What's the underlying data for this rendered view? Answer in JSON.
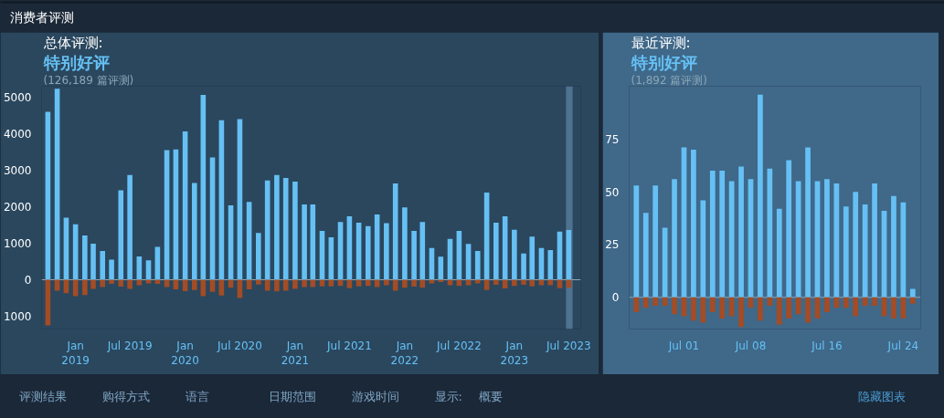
{
  "chart_data": [
    {
      "type": "other",
      "title": "消费者评测",
      "annotations": [
        "评测结果",
        "购得方式",
        "语言",
        "日期范围",
        "游戏时间",
        "显示:",
        "概要",
        "隐藏图表"
      ]
    },
    {
      "type": "bar",
      "title": "总体评测:",
      "subtitle": "特别好评",
      "annotations": [
        "(126,189 篇评测)"
      ],
      "x": [
        "2018-10",
        "2018-11",
        "2018-12",
        "2019-01",
        "2019-02",
        "2019-03",
        "2019-04",
        "2019-05",
        "2019-06",
        "2019-07",
        "2019-08",
        "2019-09",
        "2019-10",
        "2019-11",
        "2019-12",
        "2020-01",
        "2020-02",
        "2020-03",
        "2020-04",
        "2020-05",
        "2020-06",
        "2020-07",
        "2020-08",
        "2020-09",
        "2020-10",
        "2020-11",
        "2020-12",
        "2021-01",
        "2021-02",
        "2021-03",
        "2021-04",
        "2021-05",
        "2021-06",
        "2021-07",
        "2021-08",
        "2021-09",
        "2021-10",
        "2021-11",
        "2021-12",
        "2022-01",
        "2022-02",
        "2022-03",
        "2022-04",
        "2022-05",
        "2022-06",
        "2022-07",
        "2022-08",
        "2022-09",
        "2022-10",
        "2022-11",
        "2022-12",
        "2023-01",
        "2023-02",
        "2023-03",
        "2023-04",
        "2023-05",
        "2023-06",
        "2023-07"
      ],
      "series": [
        {
          "color": "#66c0f4",
          "values": [
            4600,
            5230,
            1700,
            1520,
            1210,
            990,
            790,
            550,
            2450,
            2870,
            640,
            530,
            900,
            3550,
            3570,
            4060,
            2650,
            5060,
            3350,
            4370,
            2040,
            4400,
            2130,
            1280,
            2720,
            2870,
            2790,
            2690,
            2060,
            2060,
            1340,
            1160,
            1580,
            1740,
            1560,
            1470,
            1790,
            1550,
            2640,
            1980,
            1340,
            1580,
            870,
            630,
            1120,
            1340,
            980,
            790,
            2390,
            1560,
            1740,
            1370,
            720,
            1180,
            870,
            810,
            1320,
            1360
          ]
        },
        {
          "color": "#a34c25",
          "values": [
            -1250,
            -300,
            -370,
            -450,
            -420,
            -250,
            -200,
            -110,
            -190,
            -250,
            -150,
            -100,
            -110,
            -200,
            -260,
            -310,
            -280,
            -450,
            -330,
            -430,
            -220,
            -500,
            -260,
            -130,
            -300,
            -320,
            -300,
            -250,
            -200,
            -200,
            -180,
            -180,
            -170,
            -230,
            -180,
            -170,
            -200,
            -150,
            -300,
            -220,
            -190,
            -220,
            -100,
            -60,
            -150,
            -170,
            -150,
            -100,
            -280,
            -140,
            -240,
            -170,
            -140,
            -180,
            -150,
            -150,
            -230,
            -220
          ]
        }
      ],
      "ylim": [
        -1350,
        5300
      ],
      "yticks": [
        {
          "value": -1000,
          "label": "1000"
        },
        0,
        1000,
        2000,
        3000,
        4000,
        5000
      ],
      "xlim": [
        "2018-09-10",
        "2023-08-10"
      ],
      "xticks": [
        {
          "value": "2019-01",
          "label": "Jan\n2019"
        },
        {
          "value": "2019-07",
          "label": "Jul 2019"
        },
        {
          "value": "2020-01",
          "label": "Jan\n2020"
        },
        {
          "value": "2020-07",
          "label": "Jul 2020"
        },
        {
          "value": "2021-01",
          "label": "Jan\n2021"
        },
        {
          "value": "2021-07",
          "label": "Jul 2021"
        },
        {
          "value": "2022-01",
          "label": "Jan\n2022"
        },
        {
          "value": "2022-07",
          "label": "Jul 2022"
        },
        {
          "value": "2023-01",
          "label": "Jan\n2023"
        },
        {
          "value": "2023-07",
          "label": "Jul 2023"
        }
      ],
      "ref_lines": [
        {
          "axis": "y",
          "value": 0,
          "color": "#8ba6b6"
        }
      ],
      "bands": [
        {
          "axis": "x",
          "from": "2023-06-22",
          "to": "2023-07-14",
          "color": "#4f7291"
        }
      ],
      "stacked": true
    },
    {
      "type": "bar",
      "title": "最近评测:",
      "subtitle": "特别好评",
      "annotations": [
        "(1,892 篇评测)"
      ],
      "x": [
        "2023-06-26",
        "2023-06-27",
        "2023-06-28",
        "2023-06-29",
        "2023-06-30",
        "2023-07-01",
        "2023-07-02",
        "2023-07-03",
        "2023-07-04",
        "2023-07-05",
        "2023-07-06",
        "2023-07-07",
        "2023-07-08",
        "2023-07-09",
        "2023-07-10",
        "2023-07-11",
        "2023-07-12",
        "2023-07-13",
        "2023-07-14",
        "2023-07-15",
        "2023-07-16",
        "2023-07-17",
        "2023-07-18",
        "2023-07-19",
        "2023-07-20",
        "2023-07-21",
        "2023-07-22",
        "2023-07-23",
        "2023-07-24",
        "2023-07-25"
      ],
      "series": [
        {
          "color": "#66c0f4",
          "values": [
            53,
            40,
            53,
            33,
            56,
            71,
            70,
            46,
            60,
            60,
            55,
            62,
            56,
            96,
            61,
            42,
            65,
            55,
            71,
            55,
            56,
            54,
            43,
            50,
            44,
            54,
            41,
            48,
            45,
            4
          ]
        },
        {
          "color": "#a34c25",
          "values": [
            -7,
            -5,
            -4,
            -4,
            -8,
            -9,
            -11,
            -12,
            -7,
            -10,
            -9,
            -14,
            -5,
            -11,
            -4,
            -13,
            -10,
            -8,
            -12,
            -10,
            -7,
            -5,
            -5,
            -9,
            -4,
            -4,
            -9,
            -10,
            -10,
            -3
          ]
        }
      ],
      "ylim": [
        -15,
        100
      ],
      "yticks": [
        0,
        25,
        50,
        75
      ],
      "xlim": [
        "2023-06-25T06:00",
        "2023-07-25T20:00"
      ],
      "xticks": [
        {
          "value": "2023-07-01",
          "label": "Jul 01"
        },
        {
          "value": "2023-07-08",
          "label": "Jul 08"
        },
        {
          "value": "2023-07-16",
          "label": "Jul 16"
        },
        {
          "value": "2023-07-24",
          "label": "Jul 24"
        }
      ],
      "ref_lines": [
        {
          "axis": "y",
          "value": 0,
          "color": "#8ba6b6"
        }
      ],
      "stacked": true
    }
  ]
}
